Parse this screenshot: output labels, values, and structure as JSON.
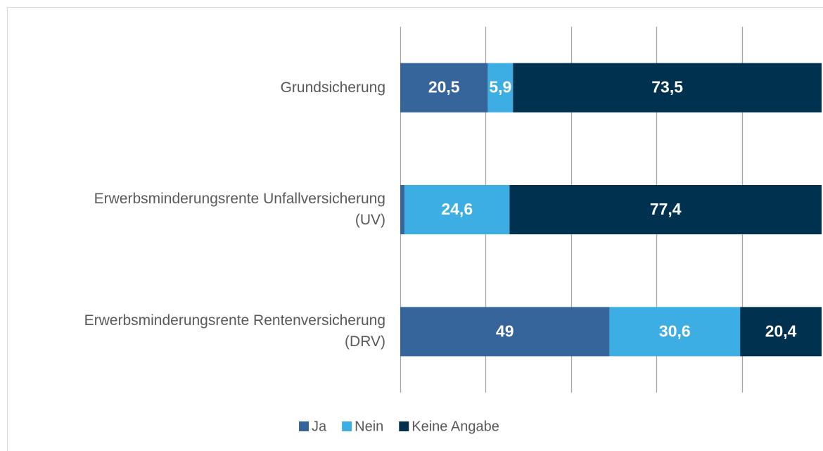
{
  "chart_data": {
    "type": "stacked_barh",
    "categories": [
      "Grundsicherung",
      "Erwerbsminderungsrente Unfallversicherung (UV)",
      "Erwerbsminderungsrente Rentenversicherung (DRV)"
    ],
    "series": [
      {
        "name": "Ja",
        "color": "#35659a",
        "values": [
          20.5,
          1.0,
          49
        ],
        "value_labels": [
          "20,5",
          null,
          "49"
        ]
      },
      {
        "name": "Nein",
        "color": "#3daee3",
        "values": [
          5.9,
          24.6,
          30.6
        ],
        "value_labels": [
          "5,9",
          "24,6",
          "30,6"
        ]
      },
      {
        "name": "Keine Angabe",
        "color": "#00314f",
        "values": [
          73.5,
          77.4,
          20.4
        ],
        "value_labels": [
          "73,5",
          "77,4",
          "20,4"
        ]
      }
    ],
    "xlim": [
      0,
      100
    ],
    "xticks": [
      0,
      20,
      40,
      60,
      80,
      100
    ],
    "grid": true,
    "legend": "bottom"
  }
}
